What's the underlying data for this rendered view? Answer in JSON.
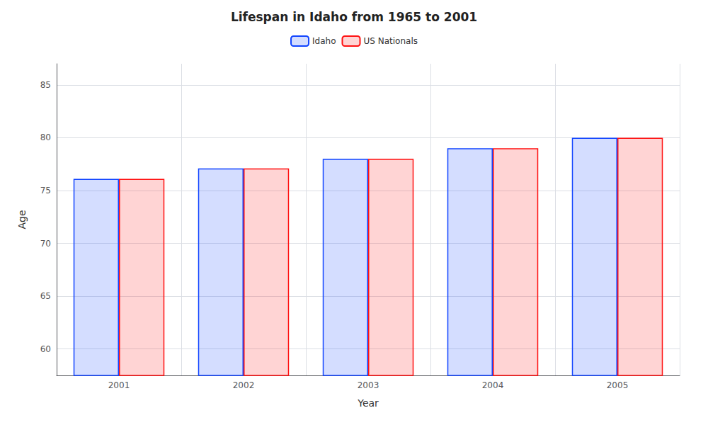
{
  "chart_data": {
    "type": "bar",
    "title": "Lifespan in Idaho from 1965 to 2001",
    "xlabel": "Year",
    "ylabel": "Age",
    "categories": [
      "2001",
      "2002",
      "2003",
      "2004",
      "2005"
    ],
    "series": [
      {
        "name": "Idaho",
        "color": "#1144FF",
        "values": [
          76.1,
          77.1,
          78.0,
          79.0,
          80.0
        ]
      },
      {
        "name": "US Nationals",
        "color": "#FF1111",
        "values": [
          76.1,
          77.1,
          78.0,
          79.0,
          80.0
        ]
      }
    ],
    "ylim": [
      57.5,
      87
    ],
    "yticks": [
      60,
      65,
      70,
      75,
      80,
      85
    ],
    "grid": true,
    "legend": "top"
  }
}
